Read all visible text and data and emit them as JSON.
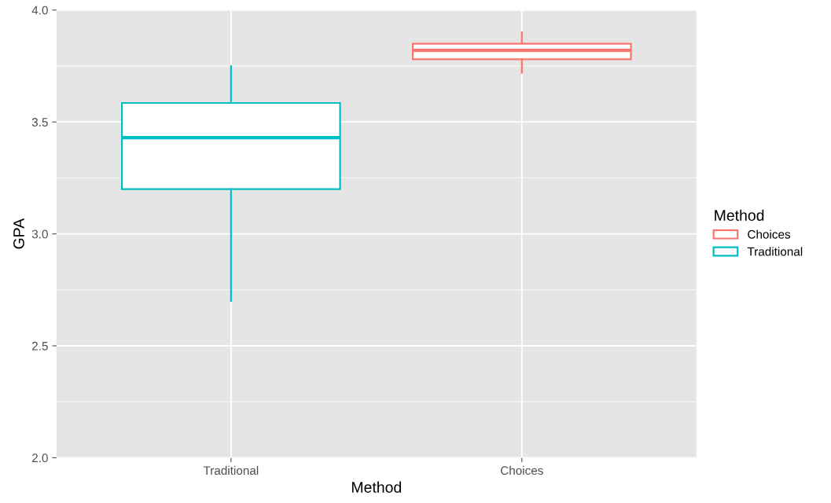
{
  "chart_data": {
    "type": "box",
    "xlabel": "Method",
    "ylabel": "GPA",
    "legend_title": "Method",
    "legend": "right",
    "grid": true,
    "categories": [
      "Traditional",
      "Choices"
    ],
    "ylim": [
      2.0,
      4.0
    ],
    "yticks": [
      {
        "value": 2.0,
        "label": "2.0"
      },
      {
        "value": 2.5,
        "label": "2.5"
      },
      {
        "value": 3.0,
        "label": "3.0"
      },
      {
        "value": 3.5,
        "label": "3.5"
      },
      {
        "value": 4.0,
        "label": "4.0"
      }
    ],
    "series": [
      {
        "name": "Choices",
        "color": "#f8766d",
        "boxes": [
          null,
          {
            "low": 3.72,
            "q1": 3.78,
            "median": 3.82,
            "q3": 3.85,
            "high": 3.9
          }
        ]
      },
      {
        "name": "Traditional",
        "color": "#00bfc4",
        "boxes": [
          {
            "low": 2.7,
            "q1": 3.2,
            "median": 3.43,
            "q3": 3.585,
            "high": 3.75
          },
          null
        ]
      }
    ]
  }
}
